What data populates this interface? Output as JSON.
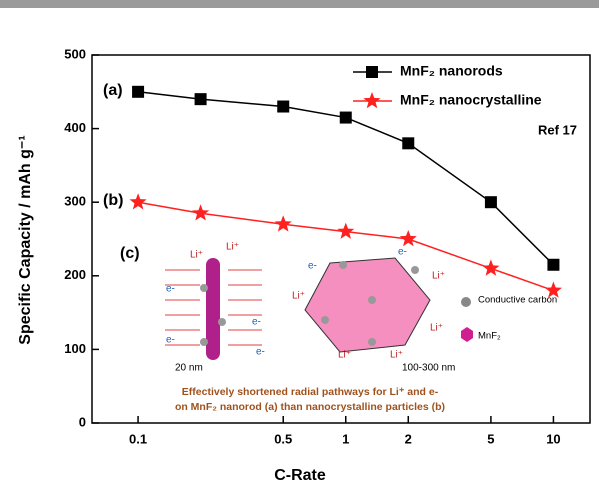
{
  "chart_data": {
    "type": "line",
    "x_label": "C-Rate",
    "y_label": "Specific Capacity / mAh g⁻¹",
    "x": [
      0.1,
      0.2,
      0.5,
      1,
      2,
      5,
      10
    ],
    "xlim": [
      0.06,
      15
    ],
    "xticks": [
      0.1,
      0.5,
      1,
      2,
      5,
      10
    ],
    "xscale": "log",
    "ylim": [
      0,
      500
    ],
    "yticks": [
      0,
      100,
      200,
      300,
      400,
      500
    ],
    "legend": "upper right",
    "series": [
      {
        "name": "MnF₂ nanorods",
        "color": "#000000",
        "marker": "square",
        "values": [
          450,
          440,
          430,
          415,
          380,
          300,
          215
        ]
      },
      {
        "name": "MnF₂ nanocrystalline",
        "color": "#ff2020",
        "marker": "star",
        "values": [
          300,
          285,
          270,
          260,
          250,
          210,
          180
        ]
      }
    ],
    "annotations": [
      "(a)",
      "(b)",
      "Ref 17"
    ],
    "inset": {
      "label": "(c)",
      "li": "Li⁺",
      "e": "e-",
      "rod_width": "20 nm",
      "particle_size": "100-300 nm",
      "legend": [
        "Conductive carbon",
        "MnF₂"
      ],
      "caption": [
        "Effectively shortened radial pathways for Li⁺ and e-",
        "on MnF₂ nanorod (a) than nanocrystalline particles (b)"
      ]
    }
  }
}
